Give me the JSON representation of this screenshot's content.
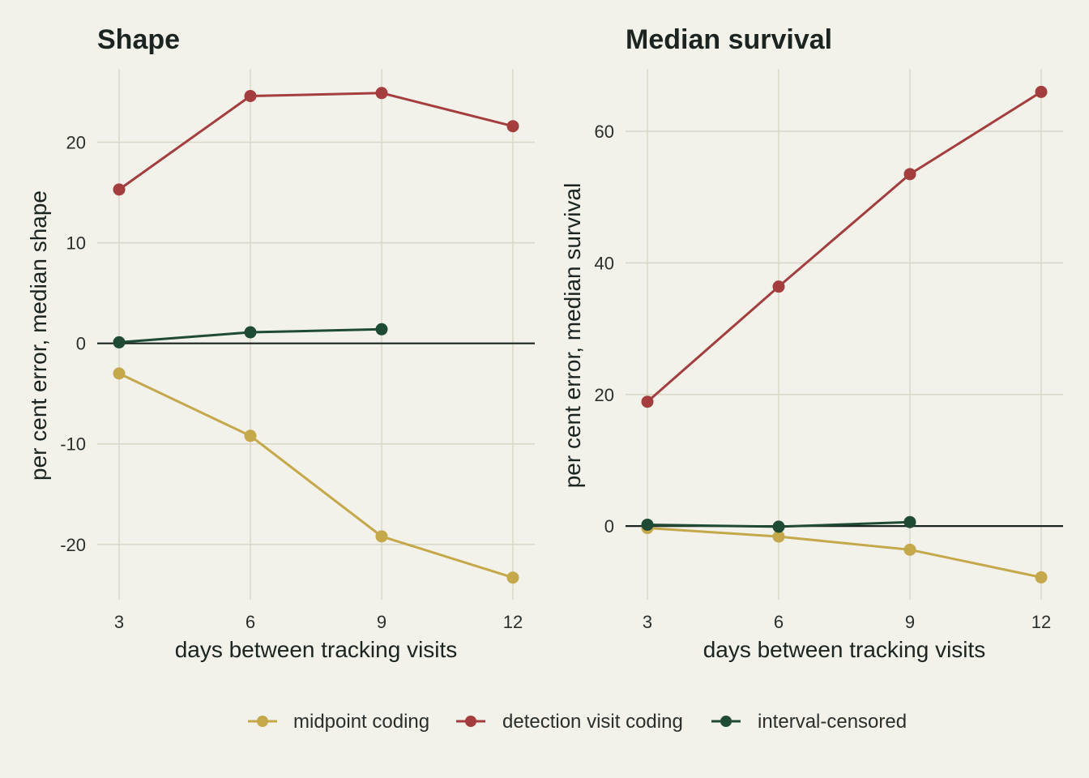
{
  "legend": {
    "placement": "bottom",
    "items": [
      {
        "key": "midpoint",
        "label": "midpoint coding",
        "color": "#c4a84a"
      },
      {
        "key": "detection",
        "label": "detection visit coding",
        "color": "#a43d3d"
      },
      {
        "key": "interval",
        "label": "interval-censored",
        "color": "#1f4a33"
      }
    ]
  },
  "chart_data": [
    {
      "type": "line",
      "title": "Shape",
      "xlabel": "days between tracking visits",
      "ylabel": "per cent error, median shape",
      "xlim": [
        2.5,
        12.5
      ],
      "ylim": [
        -25.5,
        27.3
      ],
      "x_ticks": [
        3,
        6,
        9,
        12
      ],
      "x_tick_labels": [
        "3",
        "6",
        "9",
        "12"
      ],
      "y_ticks": [
        -20,
        -10,
        0,
        10,
        20
      ],
      "y_tick_labels": [
        "-20",
        "-10",
        "0",
        "10",
        "20"
      ],
      "reference_line": 0,
      "grid": true,
      "series": [
        {
          "key": "midpoint",
          "name": "midpoint coding",
          "color": "#c4a84a",
          "points": [
            {
              "x": 3,
              "y": -3.0
            },
            {
              "x": 6,
              "y": -9.2
            },
            {
              "x": 9,
              "y": -19.2
            },
            {
              "x": 12,
              "y": -23.3
            }
          ]
        },
        {
          "key": "detection",
          "name": "detection visit coding",
          "color": "#a43d3d",
          "points": [
            {
              "x": 3,
              "y": 15.3
            },
            {
              "x": 6,
              "y": 24.6
            },
            {
              "x": 9,
              "y": 24.9
            },
            {
              "x": 12,
              "y": 21.6
            }
          ]
        },
        {
          "key": "interval",
          "name": "interval-censored",
          "color": "#1f4a33",
          "points": [
            {
              "x": 3,
              "y": 0.1
            },
            {
              "x": 6,
              "y": 1.1
            },
            {
              "x": 9,
              "y": 1.4
            }
          ]
        }
      ]
    },
    {
      "type": "line",
      "title": "Median survival",
      "xlabel": "days between tracking visits",
      "ylabel": "per cent error, median survival",
      "xlim": [
        2.5,
        12.5
      ],
      "ylim": [
        -11.2,
        69.5
      ],
      "x_ticks": [
        3,
        6,
        9,
        12
      ],
      "x_tick_labels": [
        "3",
        "6",
        "9",
        "12"
      ],
      "y_ticks": [
        0,
        20,
        40,
        60
      ],
      "y_tick_labels": [
        "0",
        "20",
        "40",
        "60"
      ],
      "reference_line": 0,
      "grid": true,
      "series": [
        {
          "key": "midpoint",
          "name": "midpoint coding",
          "color": "#c4a84a",
          "points": [
            {
              "x": 3,
              "y": -0.3
            },
            {
              "x": 6,
              "y": -1.6
            },
            {
              "x": 9,
              "y": -3.6
            },
            {
              "x": 12,
              "y": -7.8
            }
          ]
        },
        {
          "key": "detection",
          "name": "detection visit coding",
          "color": "#a43d3d",
          "points": [
            {
              "x": 3,
              "y": 18.9
            },
            {
              "x": 6,
              "y": 36.4
            },
            {
              "x": 9,
              "y": 53.5
            },
            {
              "x": 12,
              "y": 66.0
            }
          ]
        },
        {
          "key": "interval",
          "name": "interval-censored",
          "color": "#1f4a33",
          "points": [
            {
              "x": 3,
              "y": 0.2
            },
            {
              "x": 6,
              "y": -0.1
            },
            {
              "x": 9,
              "y": 0.6
            }
          ]
        }
      ]
    }
  ]
}
